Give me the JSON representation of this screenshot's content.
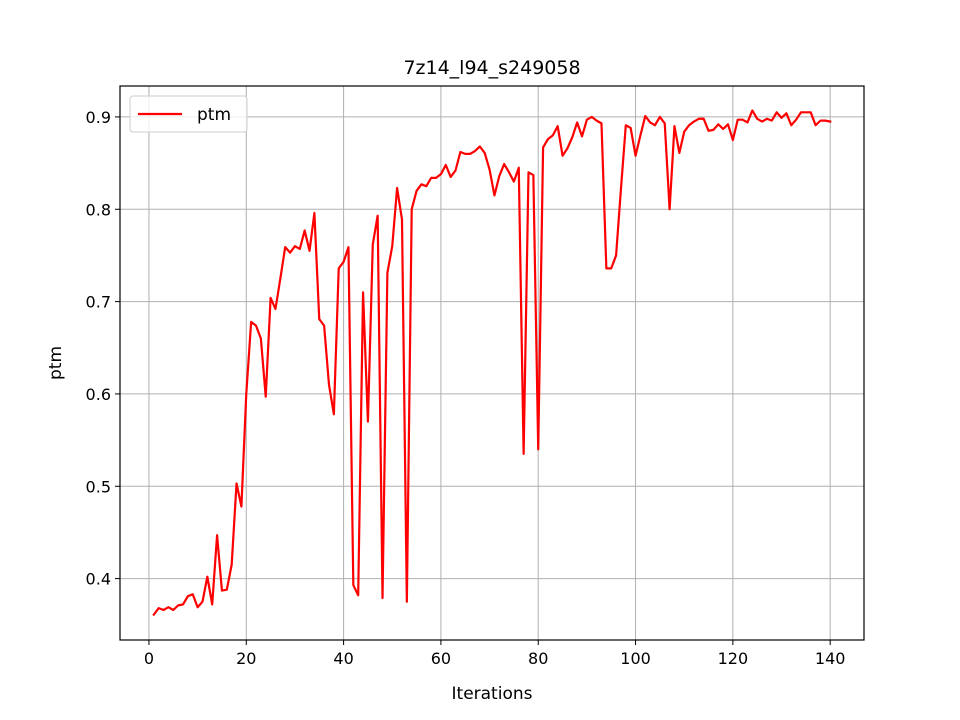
{
  "chart_data": {
    "type": "line",
    "title": "7z14_l94_s249058",
    "xlabel": "Iterations",
    "ylabel": "ptm",
    "xlim": [
      -5.95,
      146.95
    ],
    "ylim": [
      0.3335,
      0.9335
    ],
    "xticks": [
      0,
      20,
      40,
      60,
      80,
      100,
      120,
      140
    ],
    "yticks": [
      0.4,
      0.5,
      0.6,
      0.7,
      0.8,
      0.9
    ],
    "xtick_labels": [
      "0",
      "20",
      "40",
      "60",
      "80",
      "100",
      "120",
      "140"
    ],
    "ytick_labels": [
      "0.4",
      "0.5",
      "0.6",
      "0.7",
      "0.8",
      "0.9"
    ],
    "grid": true,
    "legend": {
      "position": "upper-left",
      "entries": [
        "ptm"
      ]
    },
    "series": [
      {
        "name": "ptm",
        "color": "#ff0000",
        "x": [
          1,
          2,
          3,
          4,
          5,
          6,
          7,
          8,
          9,
          10,
          11,
          12,
          13,
          14,
          15,
          16,
          17,
          18,
          19,
          20,
          21,
          22,
          23,
          24,
          25,
          26,
          27,
          28,
          29,
          30,
          31,
          32,
          33,
          34,
          35,
          36,
          37,
          38,
          39,
          40,
          41,
          42,
          43,
          44,
          45,
          46,
          47,
          48,
          49,
          50,
          51,
          52,
          53,
          54,
          55,
          56,
          57,
          58,
          59,
          60,
          61,
          62,
          63,
          64,
          65,
          66,
          67,
          68,
          69,
          70,
          71,
          72,
          73,
          74,
          75,
          76,
          77,
          78,
          79,
          80,
          81,
          82,
          83,
          84,
          85,
          86,
          87,
          88,
          89,
          90,
          91,
          92,
          93,
          94,
          95,
          96,
          97,
          98,
          99,
          100,
          101,
          102,
          103,
          104,
          105,
          106,
          107,
          108,
          109,
          110,
          111,
          112,
          113,
          114,
          115,
          116,
          117,
          118,
          119,
          120,
          121,
          122,
          123,
          124,
          125,
          126,
          127,
          128,
          129,
          130,
          131,
          132,
          133,
          134,
          135,
          136,
          137,
          138,
          139,
          140
        ],
        "y": [
          0.361,
          0.368,
          0.366,
          0.369,
          0.366,
          0.371,
          0.372,
          0.381,
          0.383,
          0.369,
          0.375,
          0.402,
          0.372,
          0.447,
          0.387,
          0.388,
          0.415,
          0.503,
          0.478,
          0.6,
          0.678,
          0.674,
          0.66,
          0.597,
          0.704,
          0.692,
          0.725,
          0.759,
          0.753,
          0.76,
          0.757,
          0.777,
          0.755,
          0.796,
          0.681,
          0.674,
          0.61,
          0.578,
          0.736,
          0.743,
          0.759,
          0.393,
          0.382,
          0.71,
          0.57,
          0.762,
          0.793,
          0.379,
          0.731,
          0.76,
          0.823,
          0.789,
          0.375,
          0.8,
          0.82,
          0.827,
          0.825,
          0.834,
          0.834,
          0.838,
          0.848,
          0.835,
          0.842,
          0.862,
          0.86,
          0.86,
          0.863,
          0.868,
          0.861,
          0.843,
          0.815,
          0.836,
          0.849,
          0.84,
          0.83,
          0.845,
          0.535,
          0.84,
          0.837,
          0.54,
          0.867,
          0.876,
          0.88,
          0.89,
          0.858,
          0.866,
          0.878,
          0.894,
          0.879,
          0.897,
          0.9,
          0.896,
          0.893,
          0.736,
          0.736,
          0.75,
          0.822,
          0.891,
          0.888,
          0.858,
          0.88,
          0.901,
          0.894,
          0.891,
          0.9,
          0.893,
          0.8,
          0.89,
          0.861,
          0.884,
          0.891,
          0.895,
          0.898,
          0.898,
          0.885,
          0.886,
          0.892,
          0.887,
          0.892,
          0.875,
          0.897,
          0.897,
          0.894,
          0.907,
          0.898,
          0.895,
          0.898,
          0.896,
          0.905,
          0.899,
          0.904,
          0.891,
          0.897,
          0.905,
          0.905,
          0.905,
          0.891,
          0.896,
          0.896,
          0.895
        ]
      }
    ]
  }
}
